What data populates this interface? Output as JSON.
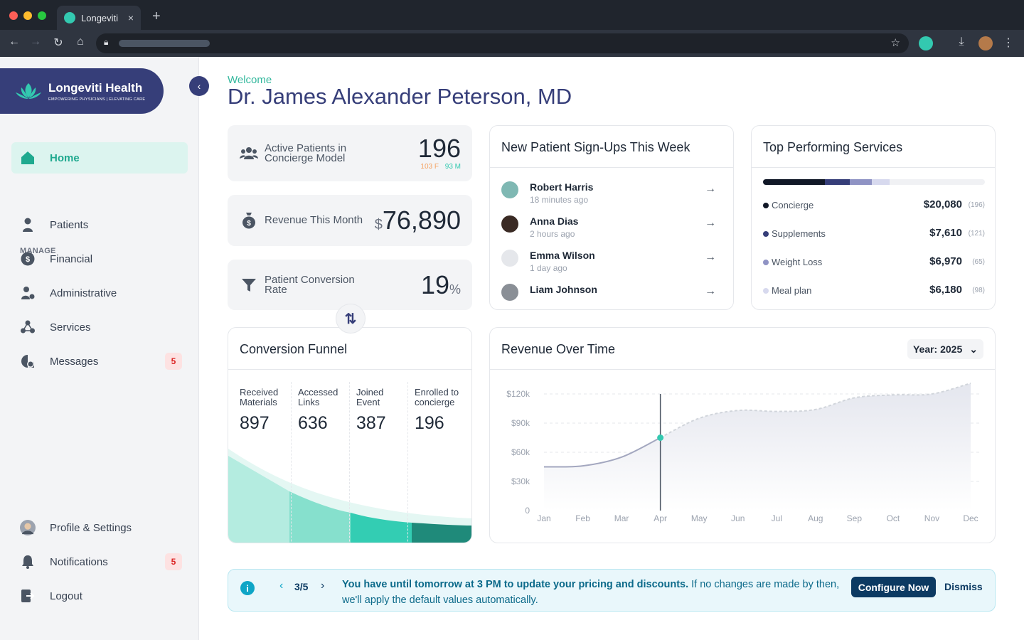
{
  "browser": {
    "tab_title": "Longeviti",
    "new_tab": "+",
    "close": "×"
  },
  "brand": {
    "name": "Longeviti Health",
    "tagline": "EMPOWERING PHYSICIANS | ELEVATING CARE"
  },
  "sidebar": {
    "section_label": "MANAGE",
    "home": "Home",
    "items": [
      {
        "label": "Patients",
        "icon": "person-icon"
      },
      {
        "label": "Financial",
        "icon": "dollar-icon"
      },
      {
        "label": "Administrative",
        "icon": "admin-icon"
      },
      {
        "label": "Services",
        "icon": "services-icon"
      },
      {
        "label": "Messages",
        "icon": "messages-icon",
        "badge": "5"
      }
    ],
    "bottom": [
      {
        "label": "Profile & Settings",
        "icon": "avatar"
      },
      {
        "label": "Notifications",
        "icon": "bell-icon",
        "badge": "5"
      },
      {
        "label": "Logout",
        "icon": "logout-icon"
      }
    ]
  },
  "header": {
    "welcome": "Welcome",
    "name": "Dr. James Alexander Peterson, MD"
  },
  "stats": {
    "active": {
      "label": "Active Patients in Concierge Model",
      "value": "196",
      "female": "103 F",
      "male": "93 M"
    },
    "revenue": {
      "label": "Revenue This Month",
      "prefix": "$",
      "value": "76,890"
    },
    "conversion": {
      "label": "Patient Conversion Rate",
      "value": "19",
      "suffix": "%"
    }
  },
  "signups": {
    "title": "New Patient Sign-Ups This Week",
    "patients": [
      {
        "name": "Robert Harris",
        "time": "18 minutes ago"
      },
      {
        "name": "Anna Dias",
        "time": "2 hours ago"
      },
      {
        "name": "Emma Wilson",
        "time": "1 day ago"
      },
      {
        "name": "Liam Johnson",
        "time": ""
      }
    ]
  },
  "services": {
    "title": "Top Performing Services",
    "items": [
      {
        "name": "Concierge",
        "value": "$20,080",
        "count": "(196)",
        "color": "#111827"
      },
      {
        "name": "Supplements",
        "value": "$7,610",
        "count": "(121)",
        "color": "#363e79"
      },
      {
        "name": "Weight Loss",
        "value": "$6,970",
        "count": "(65)",
        "color": "#8f93c4"
      },
      {
        "name": "Meal plan",
        "value": "$6,180",
        "count": "(98)",
        "color": "#d7d9ee"
      }
    ]
  },
  "funnel": {
    "title": "Conversion Funnel",
    "stages": [
      {
        "label": "Received Materials",
        "value": "897"
      },
      {
        "label": "Accessed Links",
        "value": "636"
      },
      {
        "label": "Joined Event",
        "value": "387"
      },
      {
        "label": "Enrolled to concierge",
        "value": "196"
      }
    ]
  },
  "revenue_chart": {
    "title": "Revenue Over Time",
    "year_selector": "Year: 2025"
  },
  "chart_data": {
    "type": "area",
    "title": "Revenue Over Time",
    "categories": [
      "Jan",
      "Feb",
      "Mar",
      "Apr",
      "May",
      "Jun",
      "Jul",
      "Aug",
      "Sep",
      "Oct",
      "Nov",
      "Dec"
    ],
    "series": [
      {
        "values": [
          45000,
          46000,
          55000,
          75000,
          95000,
          103000,
          102000,
          104000,
          116000,
          119000,
          120000,
          131000
        ]
      }
    ],
    "ylim": [
      0,
      120000
    ],
    "yticks": [
      "0",
      "$30k",
      "$60k",
      "$90k",
      "$120k"
    ],
    "highlight": "Apr",
    "grid": true
  },
  "alert": {
    "pager": "3/5",
    "bold": "You have until tomorrow at 3 PM to update your pricing and discounts.",
    "rest": " If no changes are made by then, we'll apply the default values automatically.",
    "configure": "Configure Now",
    "dismiss": "Dismiss"
  }
}
